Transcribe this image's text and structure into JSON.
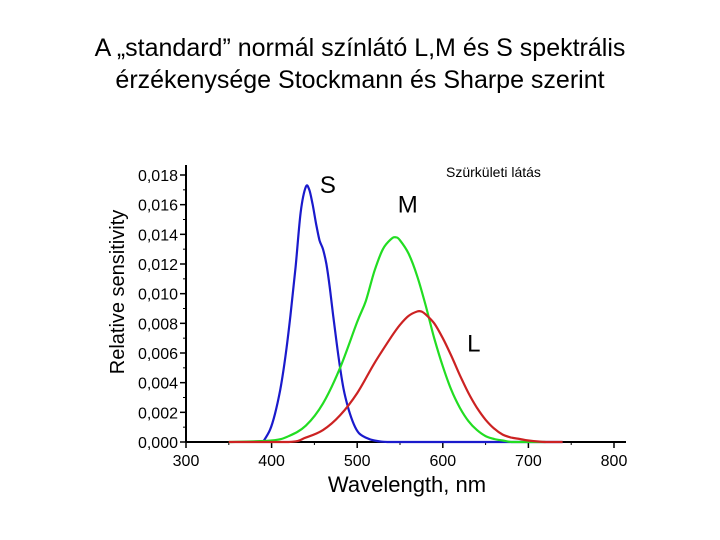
{
  "slide": {
    "title_line1": "A „standard” normál színlátó L,M és S spektrális",
    "title_line2": "érzékenysége Stockmann és Sharpe szerint"
  },
  "chart_data": {
    "type": "line",
    "title": "A „standard” normál színlátó L,M és S spektrális érzékenysége Stockmann és Sharpe szerint",
    "xlabel": "Wavelength, nm",
    "ylabel": "Relative sensitivity",
    "xlim": [
      300,
      800
    ],
    "ylim": [
      0,
      0.018
    ],
    "x_ticks": [
      300,
      400,
      500,
      600,
      700,
      800
    ],
    "x_tick_labels": [
      "300",
      "400",
      "500",
      "600",
      "700",
      "800"
    ],
    "y_ticks": [
      0,
      0.002,
      0.004,
      0.006,
      0.008,
      0.01,
      0.012,
      0.014,
      0.016,
      0.018
    ],
    "y_tick_labels": [
      "0,000",
      "0,002",
      "0,004",
      "0,006",
      "0,008",
      "0,010",
      "0,012",
      "0,014",
      "0,016",
      "0,018"
    ],
    "grid": false,
    "annotation": "Szürkületi látás",
    "series": [
      {
        "name": "S",
        "color": "#1a1acc",
        "x": [
          390,
          398,
          404,
          410,
          416,
          422,
          428,
          434,
          440,
          444,
          448,
          452,
          456,
          460,
          464,
          468,
          472,
          478,
          484,
          490,
          496,
          502,
          510,
          520,
          535,
          560,
          600,
          650,
          700,
          740
        ],
        "values": [
          0.0,
          0.0008,
          0.0019,
          0.0035,
          0.0057,
          0.0085,
          0.0118,
          0.0155,
          0.0172,
          0.017,
          0.016,
          0.0147,
          0.0136,
          0.013,
          0.012,
          0.0104,
          0.0085,
          0.0058,
          0.0036,
          0.0022,
          0.0012,
          0.0006,
          0.0003,
          0.0001,
          0.0,
          0.0,
          0.0,
          0.0,
          0.0,
          0.0
        ]
      },
      {
        "name": "M",
        "color": "#22dd22",
        "x": [
          350,
          400,
          420,
          440,
          460,
          480,
          500,
          510,
          520,
          530,
          540,
          545,
          550,
          560,
          570,
          580,
          590,
          600,
          610,
          620,
          630,
          640,
          650,
          660,
          670,
          680,
          690,
          700,
          720
        ],
        "values": [
          0.0,
          0.0001,
          0.0004,
          0.0011,
          0.0026,
          0.005,
          0.0081,
          0.0095,
          0.0115,
          0.013,
          0.0137,
          0.0138,
          0.0136,
          0.0127,
          0.0112,
          0.0092,
          0.007,
          0.0051,
          0.0035,
          0.0023,
          0.0014,
          0.0008,
          0.0004,
          0.0002,
          0.0001,
          0.0,
          0.0,
          0.0,
          0.0
        ]
      },
      {
        "name": "L",
        "color": "#cc2222",
        "x": [
          350,
          420,
          440,
          460,
          480,
          500,
          520,
          540,
          550,
          560,
          570,
          575,
          580,
          590,
          600,
          610,
          620,
          630,
          640,
          650,
          660,
          670,
          680,
          690,
          700,
          720,
          740
        ],
        "values": [
          0.0,
          0.0,
          0.0003,
          0.0008,
          0.0018,
          0.0033,
          0.0053,
          0.0071,
          0.0079,
          0.0085,
          0.0088,
          0.0088,
          0.0086,
          0.008,
          0.007,
          0.0058,
          0.0045,
          0.0033,
          0.0023,
          0.0015,
          0.0009,
          0.0005,
          0.0003,
          0.0002,
          0.0001,
          0.0,
          0.0
        ]
      }
    ]
  }
}
